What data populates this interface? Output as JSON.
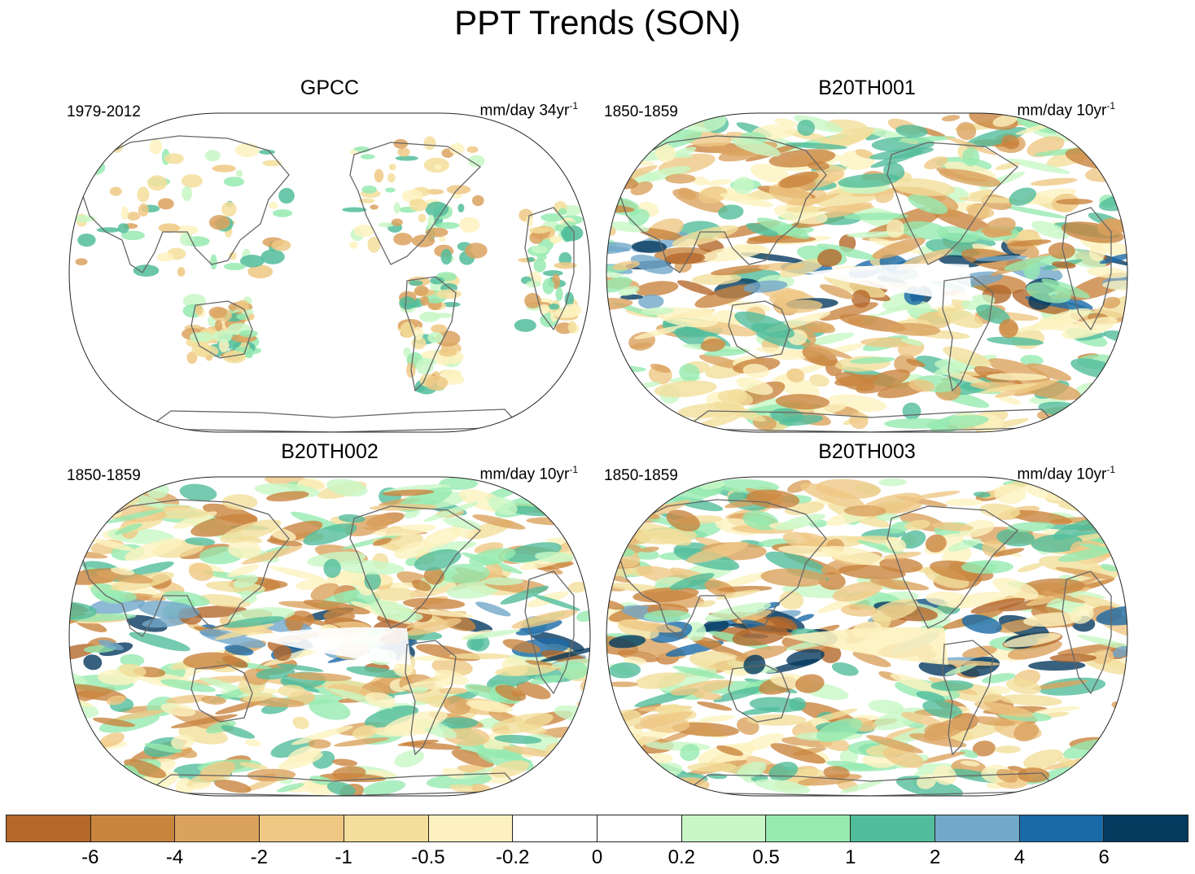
{
  "title": "PPT Trends (SON)",
  "panels": [
    {
      "title": "GPCC",
      "period": "1979-2012",
      "units": "mm/day 34yr",
      "units_sup": "-1",
      "style": "observed"
    },
    {
      "title": "B20TH001",
      "period": "1850-1859",
      "units": "mm/day 10yr",
      "units_sup": "-1",
      "style": "model"
    },
    {
      "title": "B20TH002",
      "period": "1850-1859",
      "units": "mm/day 10yr",
      "units_sup": "-1",
      "style": "model"
    },
    {
      "title": "B20TH003",
      "period": "1850-1859",
      "units": "mm/day 10yr",
      "units_sup": "-1",
      "style": "model"
    }
  ],
  "colorbar": {
    "colors": [
      "#b4682b",
      "#c9853e",
      "#dba25f",
      "#efc884",
      "#f3de9b",
      "#fdf2bf",
      "#ffffff",
      "#ffffff",
      "#c8f7c5",
      "#96eab0",
      "#52bd9b",
      "#72a8c9",
      "#1a6aa8",
      "#053a5e"
    ],
    "labels": [
      "-6",
      "-4",
      "-2",
      "-1",
      "-0.5",
      "-0.2",
      "0",
      "0.2",
      "0.5",
      "1",
      "2",
      "4",
      "6"
    ]
  },
  "map_style": {
    "coast_color": "#666666",
    "outline_color": "#222222"
  }
}
